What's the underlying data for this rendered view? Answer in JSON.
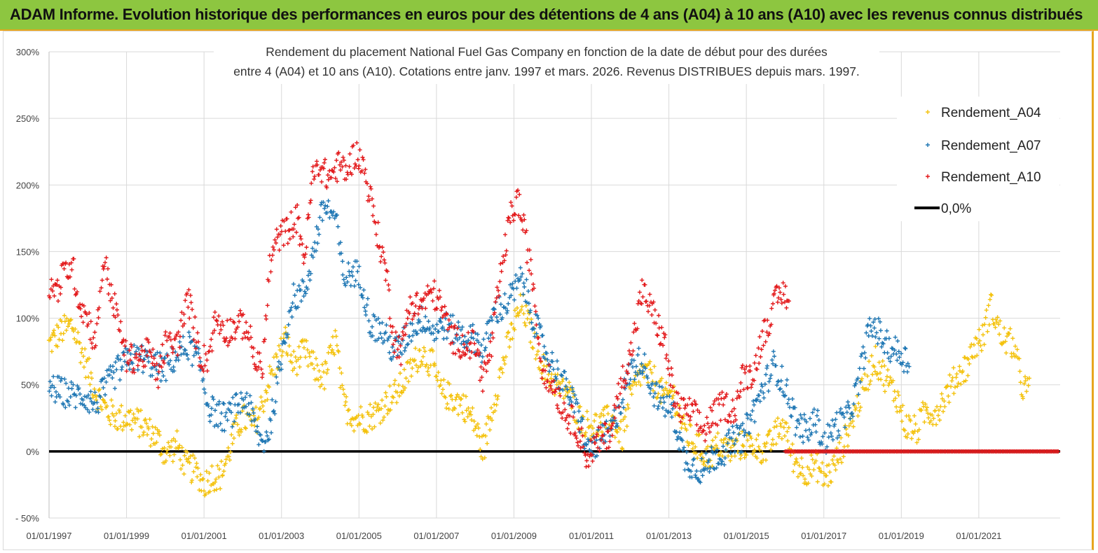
{
  "header": {
    "title": "ADAM Informe. Evolution historique des performances en euros pour des détentions de 4 ans (A04) à 10 ans (A10) avec les revenus connus distribués"
  },
  "chart_data": {
    "type": "scatter",
    "title_line1": "Rendement du placement National Fuel Gas Company en fonction de la date de début pour des durées",
    "title_line2": "entre 4 (A04) et 10 ans (A10). Cotations entre janv. 1997 et mars. 2026. Revenus DISTRIBUES depuis mars. 1997.",
    "x_ticks": [
      "01/01/1997",
      "01/01/1999",
      "01/01/2001",
      "01/01/2003",
      "01/01/2005",
      "01/01/2007",
      "01/01/2009",
      "01/01/2011",
      "01/01/2013",
      "01/01/2015",
      "01/01/2017",
      "01/01/2019",
      "01/01/2021"
    ],
    "y_ticks": [
      "300%",
      "250%",
      "200%",
      "150%",
      "100%",
      "50%",
      "0%",
      "- 50%"
    ],
    "xlim": [
      1997.0,
      2023.1
    ],
    "ylim": [
      -50,
      300
    ],
    "grid": true,
    "legend_position": "top-right",
    "series": [
      {
        "name": "Rendement_A04",
        "color": "#f4c20d",
        "start": 1997.0,
        "end": 2022.3,
        "points": [
          [
            1997.0,
            80
          ],
          [
            1997.3,
            90
          ],
          [
            1997.6,
            95
          ],
          [
            1997.9,
            70
          ],
          [
            1998.2,
            45
          ],
          [
            1998.5,
            30
          ],
          [
            1998.8,
            25
          ],
          [
            1999.1,
            25
          ],
          [
            1999.4,
            20
          ],
          [
            1999.8,
            10
          ],
          [
            2000.0,
            -2
          ],
          [
            2000.3,
            5
          ],
          [
            2000.5,
            -10
          ],
          [
            2000.8,
            -15
          ],
          [
            2001.0,
            -25
          ],
          [
            2001.2,
            -18
          ],
          [
            2001.4,
            -20
          ],
          [
            2001.6,
            -5
          ],
          [
            2001.8,
            15
          ],
          [
            2002.0,
            25
          ],
          [
            2002.3,
            20
          ],
          [
            2002.5,
            35
          ],
          [
            2002.7,
            55
          ],
          [
            2002.9,
            70
          ],
          [
            2003.1,
            85
          ],
          [
            2003.3,
            65
          ],
          [
            2003.6,
            75
          ],
          [
            2003.9,
            60
          ],
          [
            2004.1,
            55
          ],
          [
            2004.4,
            85
          ],
          [
            2004.6,
            35
          ],
          [
            2004.9,
            25
          ],
          [
            2005.2,
            25
          ],
          [
            2005.5,
            30
          ],
          [
            2005.8,
            40
          ],
          [
            2006.0,
            45
          ],
          [
            2006.3,
            60
          ],
          [
            2006.6,
            75
          ],
          [
            2006.9,
            65
          ],
          [
            2007.1,
            45
          ],
          [
            2007.4,
            40
          ],
          [
            2007.7,
            35
          ],
          [
            2008.0,
            20
          ],
          [
            2008.2,
            0
          ],
          [
            2008.5,
            40
          ],
          [
            2008.8,
            75
          ],
          [
            2009.0,
            95
          ],
          [
            2009.2,
            110
          ],
          [
            2009.5,
            85
          ],
          [
            2009.8,
            60
          ],
          [
            2010.1,
            50
          ],
          [
            2010.4,
            45
          ],
          [
            2010.7,
            25
          ],
          [
            2010.9,
            20
          ],
          [
            2011.2,
            20
          ],
          [
            2011.5,
            25
          ],
          [
            2011.8,
            10
          ],
          [
            2012.0,
            40
          ],
          [
            2012.3,
            60
          ],
          [
            2012.6,
            55
          ],
          [
            2012.9,
            40
          ],
          [
            2013.1,
            45
          ],
          [
            2013.4,
            15
          ],
          [
            2013.7,
            5
          ],
          [
            2014.0,
            -5
          ],
          [
            2014.3,
            5
          ],
          [
            2014.6,
            0
          ],
          [
            2014.9,
            5
          ],
          [
            2015.2,
            5
          ],
          [
            2015.5,
            0
          ],
          [
            2015.8,
            15
          ],
          [
            2016.0,
            20
          ],
          [
            2016.2,
            -5
          ],
          [
            2016.5,
            -15
          ],
          [
            2016.8,
            -10
          ],
          [
            2017.0,
            -20
          ],
          [
            2017.2,
            -15
          ],
          [
            2017.5,
            5
          ],
          [
            2017.8,
            30
          ],
          [
            2018.0,
            45
          ],
          [
            2018.3,
            70
          ],
          [
            2018.6,
            55
          ],
          [
            2018.9,
            40
          ],
          [
            2019.1,
            20
          ],
          [
            2019.4,
            15
          ],
          [
            2019.6,
            30
          ],
          [
            2019.9,
            30
          ],
          [
            2020.1,
            40
          ],
          [
            2020.4,
            55
          ],
          [
            2020.7,
            65
          ],
          [
            2020.9,
            80
          ],
          [
            2021.1,
            85
          ],
          [
            2021.3,
            110
          ],
          [
            2021.6,
            85
          ],
          [
            2021.9,
            80
          ],
          [
            2022.1,
            50
          ],
          [
            2022.3,
            45
          ]
        ]
      },
      {
        "name": "Rendement_A07",
        "color": "#1f77b4",
        "start": 1997.0,
        "end": 2019.2,
        "points": [
          [
            1997.0,
            48
          ],
          [
            1997.3,
            45
          ],
          [
            1997.6,
            42
          ],
          [
            1997.9,
            42
          ],
          [
            1998.2,
            35
          ],
          [
            1998.5,
            50
          ],
          [
            1998.8,
            62
          ],
          [
            1999.1,
            70
          ],
          [
            1999.4,
            70
          ],
          [
            1999.7,
            65
          ],
          [
            2000.0,
            62
          ],
          [
            2000.3,
            72
          ],
          [
            2000.6,
            80
          ],
          [
            2000.9,
            65
          ],
          [
            2001.1,
            35
          ],
          [
            2001.3,
            28
          ],
          [
            2001.6,
            25
          ],
          [
            2001.9,
            35
          ],
          [
            2002.1,
            40
          ],
          [
            2002.3,
            20
          ],
          [
            2002.5,
            5
          ],
          [
            2002.7,
            18
          ],
          [
            2002.9,
            50
          ],
          [
            2003.1,
            90
          ],
          [
            2003.3,
            115
          ],
          [
            2003.6,
            120
          ],
          [
            2003.9,
            160
          ],
          [
            2004.1,
            185
          ],
          [
            2004.4,
            175
          ],
          [
            2004.6,
            130
          ],
          [
            2004.9,
            135
          ],
          [
            2005.1,
            125
          ],
          [
            2005.3,
            95
          ],
          [
            2005.6,
            90
          ],
          [
            2005.9,
            75
          ],
          [
            2006.1,
            80
          ],
          [
            2006.4,
            95
          ],
          [
            2006.7,
            100
          ],
          [
            2006.9,
            90
          ],
          [
            2007.2,
            95
          ],
          [
            2007.5,
            90
          ],
          [
            2007.8,
            85
          ],
          [
            2008.0,
            85
          ],
          [
            2008.2,
            75
          ],
          [
            2008.5,
            105
          ],
          [
            2008.8,
            110
          ],
          [
            2009.0,
            120
          ],
          [
            2009.2,
            130
          ],
          [
            2009.5,
            100
          ],
          [
            2009.8,
            75
          ],
          [
            2010.1,
            60
          ],
          [
            2010.4,
            45
          ],
          [
            2010.7,
            25
          ],
          [
            2010.9,
            0
          ],
          [
            2011.1,
            5
          ],
          [
            2011.3,
            10
          ],
          [
            2011.5,
            15
          ],
          [
            2011.8,
            40
          ],
          [
            2012.0,
            60
          ],
          [
            2012.3,
            70
          ],
          [
            2012.6,
            45
          ],
          [
            2012.9,
            35
          ],
          [
            2013.1,
            30
          ],
          [
            2013.4,
            -5
          ],
          [
            2013.6,
            -10
          ],
          [
            2013.9,
            -15
          ],
          [
            2014.1,
            -5
          ],
          [
            2014.4,
            0
          ],
          [
            2014.7,
            10
          ],
          [
            2014.9,
            10
          ],
          [
            2015.1,
            25
          ],
          [
            2015.4,
            45
          ],
          [
            2015.7,
            65
          ],
          [
            2015.9,
            55
          ],
          [
            2016.1,
            40
          ],
          [
            2016.3,
            20
          ],
          [
            2016.6,
            15
          ],
          [
            2016.8,
            25
          ],
          [
            2017.0,
            5
          ],
          [
            2017.3,
            20
          ],
          [
            2017.6,
            25
          ],
          [
            2017.9,
            50
          ],
          [
            2018.1,
            85
          ],
          [
            2018.3,
            95
          ],
          [
            2018.6,
            80
          ],
          [
            2018.9,
            75
          ],
          [
            2019.1,
            70
          ],
          [
            2019.2,
            65
          ]
        ]
      },
      {
        "name": "Rendement_A10",
        "color": "#e31a1c",
        "start": 1997.0,
        "end": 2016.1,
        "points": [
          [
            1997.0,
            125
          ],
          [
            1997.2,
            120
          ],
          [
            1997.4,
            135
          ],
          [
            1997.6,
            140
          ],
          [
            1997.8,
            110
          ],
          [
            1998.0,
            100
          ],
          [
            1998.2,
            80
          ],
          [
            1998.4,
            145
          ],
          [
            1998.6,
            120
          ],
          [
            1998.8,
            95
          ],
          [
            1999.0,
            70
          ],
          [
            1999.3,
            70
          ],
          [
            1999.6,
            75
          ],
          [
            1999.8,
            55
          ],
          [
            2000.0,
            80
          ],
          [
            2000.3,
            80
          ],
          [
            2000.6,
            115
          ],
          [
            2000.9,
            70
          ],
          [
            2001.1,
            70
          ],
          [
            2001.3,
            100
          ],
          [
            2001.6,
            90
          ],
          [
            2001.9,
            95
          ],
          [
            2002.1,
            95
          ],
          [
            2002.3,
            70
          ],
          [
            2002.5,
            60
          ],
          [
            2002.7,
            140
          ],
          [
            2002.9,
            160
          ],
          [
            2003.1,
            165
          ],
          [
            2003.4,
            175
          ],
          [
            2003.6,
            145
          ],
          [
            2003.8,
            205
          ],
          [
            2004.0,
            215
          ],
          [
            2004.2,
            205
          ],
          [
            2004.5,
            215
          ],
          [
            2004.7,
            210
          ],
          [
            2004.9,
            225
          ],
          [
            2005.1,
            215
          ],
          [
            2005.3,
            190
          ],
          [
            2005.5,
            160
          ],
          [
            2005.7,
            135
          ],
          [
            2005.9,
            85
          ],
          [
            2006.1,
            75
          ],
          [
            2006.3,
            110
          ],
          [
            2006.6,
            110
          ],
          [
            2006.9,
            120
          ],
          [
            2007.1,
            110
          ],
          [
            2007.4,
            85
          ],
          [
            2007.7,
            80
          ],
          [
            2008.0,
            80
          ],
          [
            2008.2,
            55
          ],
          [
            2008.4,
            75
          ],
          [
            2008.7,
            140
          ],
          [
            2008.9,
            175
          ],
          [
            2009.1,
            190
          ],
          [
            2009.3,
            160
          ],
          [
            2009.5,
            125
          ],
          [
            2009.7,
            65
          ],
          [
            2009.9,
            55
          ],
          [
            2010.1,
            45
          ],
          [
            2010.3,
            30
          ],
          [
            2010.6,
            20
          ],
          [
            2010.9,
            -5
          ],
          [
            2011.1,
            5
          ],
          [
            2011.3,
            10
          ],
          [
            2011.5,
            15
          ],
          [
            2011.8,
            55
          ],
          [
            2012.0,
            70
          ],
          [
            2012.3,
            120
          ],
          [
            2012.5,
            110
          ],
          [
            2012.7,
            95
          ],
          [
            2012.9,
            80
          ],
          [
            2013.1,
            45
          ],
          [
            2013.3,
            30
          ],
          [
            2013.6,
            30
          ],
          [
            2013.9,
            15
          ],
          [
            2014.1,
            25
          ],
          [
            2014.4,
            35
          ],
          [
            2014.7,
            30
          ],
          [
            2014.9,
            55
          ],
          [
            2015.2,
            60
          ],
          [
            2015.4,
            85
          ],
          [
            2015.6,
            100
          ],
          [
            2015.8,
            115
          ],
          [
            2016.0,
            120
          ],
          [
            2016.1,
            110
          ]
        ]
      },
      {
        "name": "0,0%",
        "color": "#000000",
        "values": [
          0,
          0
        ]
      }
    ]
  }
}
